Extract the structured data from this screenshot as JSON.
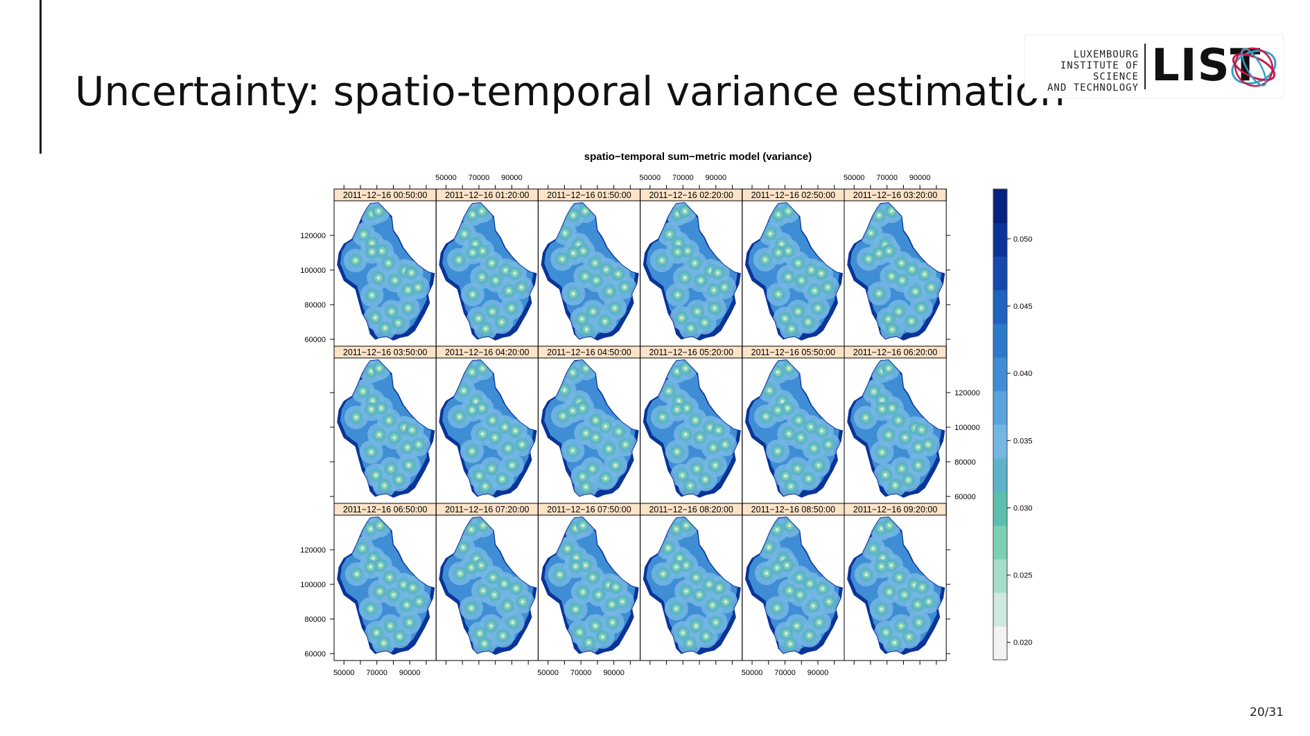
{
  "slide": {
    "title": "Uncertainty: spatio-temporal variance estimation",
    "page_number": "20/31"
  },
  "logo": {
    "lines": [
      "LUXEMBOURG",
      "INSTITUTE OF SCIENCE",
      "AND TECHNOLOGY"
    ],
    "word": "LIST",
    "colors": {
      "crimson": "#c8174a",
      "teal": "#3a9fc0"
    }
  },
  "chart_data": {
    "type": "heatmap",
    "title": "spatio−temporal sum−metric model (variance)",
    "panel_titles": [
      "2011−12−16 00:50:00",
      "2011−12−16 01:20:00",
      "2011−12−16 01:50:00",
      "2011−12−16 02:20:00",
      "2011−12−16 02:50:00",
      "2011−12−16 03:20:00",
      "2011−12−16 03:50:00",
      "2011−12−16 04:20:00",
      "2011−12−16 04:50:00",
      "2011−12−16 05:20:00",
      "2011−12−16 05:50:00",
      "2011−12−16 06:20:00",
      "2011−12−16 06:50:00",
      "2011−12−16 07:20:00",
      "2011−12−16 07:50:00",
      "2011−12−16 08:20:00",
      "2011−12−16 08:50:00",
      "2011−12−16 09:20:00"
    ],
    "x_ticks": [
      "50000",
      "70000",
      "90000"
    ],
    "y_ticks": [
      "60000",
      "80000",
      "100000",
      "120000"
    ],
    "xlim": [
      44000,
      106000
    ],
    "ylim": [
      56000,
      140000
    ],
    "colorbar": {
      "ticks": [
        "0.020",
        "0.025",
        "0.030",
        "0.035",
        "0.040",
        "0.045",
        "0.050"
      ],
      "range": [
        0.0187,
        0.0537
      ],
      "colors": [
        "#f2f2f2",
        "#cfe9df",
        "#a6dcc8",
        "#7dcfb3",
        "#5bbfad",
        "#5eb3c9",
        "#74b7e3",
        "#5aa3de",
        "#3f8ed5",
        "#2c7acb",
        "#1f62bf",
        "#1549ad",
        "#0b3499",
        "#05227f"
      ]
    },
    "stations": [
      [
        66000,
        132000
      ],
      [
        72000,
        134000
      ],
      [
        61000,
        121000
      ],
      [
        68000,
        115000
      ],
      [
        72000,
        111000
      ],
      [
        58000,
        106000
      ],
      [
        66000,
        110000
      ],
      [
        78000,
        104000
      ],
      [
        86000,
        100000
      ],
      [
        92000,
        98000
      ],
      [
        80000,
        94000
      ],
      [
        72000,
        96000
      ],
      [
        88000,
        88000
      ],
      [
        96000,
        90000
      ],
      [
        66000,
        86000
      ],
      [
        70000,
        72000
      ],
      [
        78000,
        76000
      ],
      [
        84000,
        70000
      ],
      [
        74000,
        66000
      ],
      [
        90000,
        78000
      ]
    ]
  }
}
